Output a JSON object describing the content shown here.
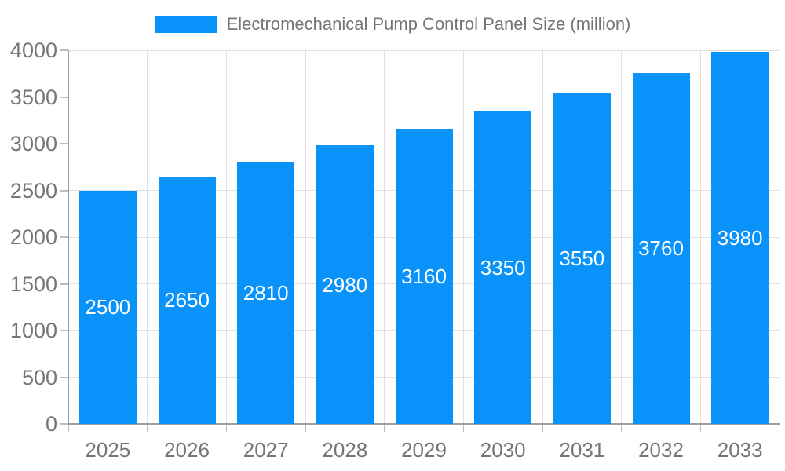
{
  "chart_data": {
    "type": "bar",
    "title": "Electromechanical Pump Control Panel Size (million)",
    "categories": [
      "2025",
      "2026",
      "2027",
      "2028",
      "2029",
      "2030",
      "2031",
      "2032",
      "2033"
    ],
    "values": [
      2500,
      2650,
      2810,
      2980,
      3160,
      3350,
      3550,
      3760,
      3980
    ],
    "series": [
      {
        "name": "Electromechanical Pump Control Panel Size (million)",
        "values": [
          2500,
          2650,
          2810,
          2980,
          3160,
          3350,
          3550,
          3760,
          3980
        ]
      }
    ],
    "xlabel": "",
    "ylabel": "",
    "ylim": [
      0,
      4000
    ],
    "ytick_step": 500,
    "ytick_labels": [
      "0",
      "500",
      "1000",
      "1500",
      "2000",
      "2500",
      "3000",
      "3500",
      "4000"
    ],
    "grid": "horizontal and vertical gridlines on",
    "legend_position": "top-center",
    "value_labels": "white, centered inside bars",
    "colors": {
      "bar": "#0892FA",
      "value_label_text": "#ffffff",
      "axis_text": "#757575",
      "title_text": "#757575",
      "gridline": "#e0e0e0",
      "axis_line": "#9e9e9e",
      "tick": "#bdbdbd",
      "background": "#ffffff"
    }
  }
}
